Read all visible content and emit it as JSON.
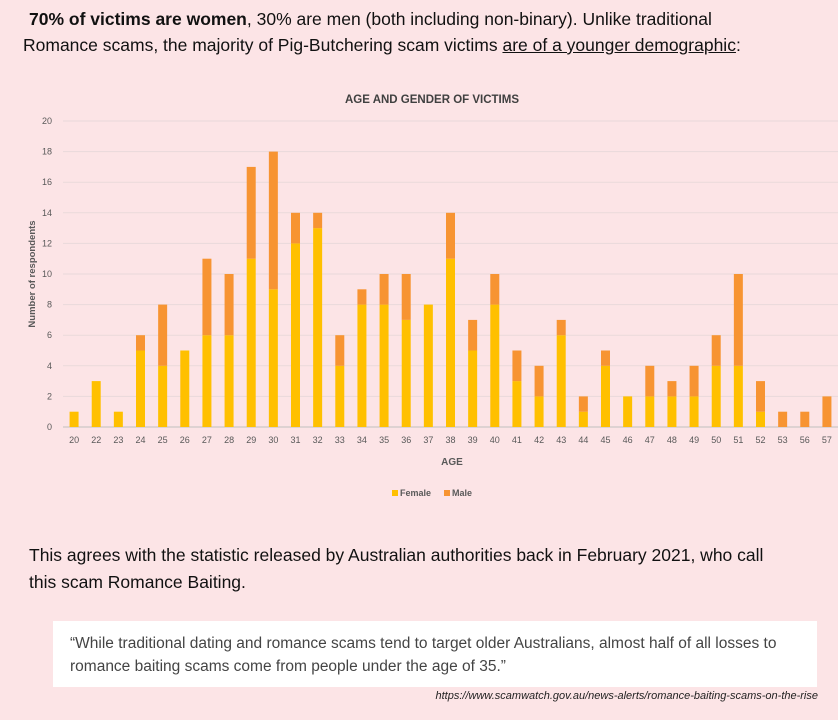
{
  "intro": {
    "bold": "70% of victims are women",
    "rest1": ", 30% are men (both including non-binary). Unlike traditional",
    "line2_a": "Romance scams, the majority of Pig-Butchering scam victims ",
    "line2_u": "are of a younger demographic",
    "line2_b": ":"
  },
  "chart_data": {
    "type": "bar",
    "stacked": true,
    "title": "AGE AND GENDER OF VICTIMS",
    "xlabel": "AGE",
    "ylabel": "Number of respondents",
    "ylim": [
      0,
      20
    ],
    "yticks": [
      0,
      2,
      4,
      6,
      8,
      10,
      12,
      14,
      16,
      18,
      20
    ],
    "grid": true,
    "legend": "bottom",
    "categories": [
      "20",
      "22",
      "23",
      "24",
      "25",
      "26",
      "27",
      "28",
      "29",
      "30",
      "31",
      "32",
      "33",
      "34",
      "35",
      "36",
      "37",
      "38",
      "39",
      "40",
      "41",
      "42",
      "43",
      "44",
      "45",
      "46",
      "47",
      "48",
      "49",
      "50",
      "51",
      "52",
      "53",
      "56",
      "57"
    ],
    "series": [
      {
        "name": "Female",
        "color": "#ffc000",
        "values": [
          1,
          3,
          1,
          5,
          4,
          5,
          6,
          6,
          11,
          9,
          12,
          13,
          4,
          8,
          8,
          7,
          8,
          11,
          5,
          8,
          3,
          2,
          6,
          1,
          4,
          2,
          2,
          2,
          2,
          4,
          4,
          1,
          0,
          0,
          0
        ]
      },
      {
        "name": "Male",
        "color": "#f79432",
        "values": [
          0,
          0,
          0,
          1,
          4,
          0,
          5,
          4,
          6,
          9,
          2,
          1,
          2,
          1,
          2,
          3,
          0,
          3,
          2,
          2,
          2,
          2,
          1,
          1,
          1,
          0,
          2,
          1,
          2,
          2,
          6,
          2,
          1,
          1,
          2
        ]
      }
    ]
  },
  "middle_text": {
    "line1": "This agrees with the statistic released by Australian authorities back in February 2021, who call",
    "line2": "this scam Romance Baiting."
  },
  "quote": {
    "text": "“While traditional dating and romance scams tend to target older Australians, almost half of all losses to romance baiting scams come from people under the age of 35.”"
  },
  "source": "https://www.scamwatch.gov.au/news-alerts/romance-baiting-scams-on-the-rise"
}
